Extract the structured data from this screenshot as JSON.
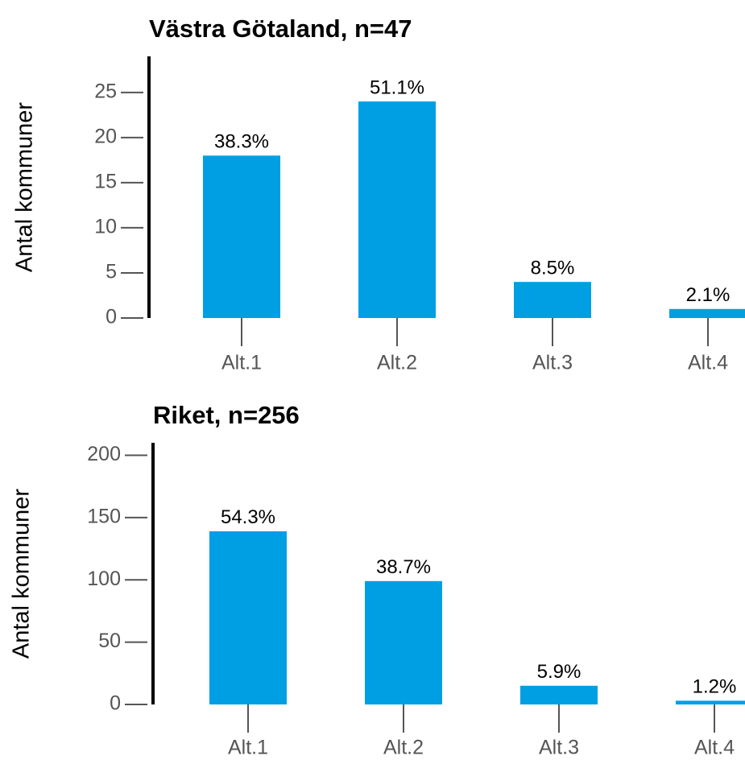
{
  "chart_data": [
    {
      "type": "bar",
      "title": "Västra Götaland, n=47",
      "y_label": "Antal kommuner",
      "categories": [
        "Alt.1",
        "Alt.2",
        "Alt.3",
        "Alt.4"
      ],
      "values": [
        18,
        24,
        4,
        1
      ],
      "value_labels": [
        "38.3%",
        "51.1%",
        "8.5%",
        "2.1%"
      ],
      "color": "#009fe3",
      "ylim": [
        0,
        29
      ],
      "yticks": [
        0,
        5,
        10,
        15,
        20,
        25
      ]
    },
    {
      "type": "bar",
      "title": "Riket, n=256",
      "y_label": "Antal kommuner",
      "categories": [
        "Alt.1",
        "Alt.2",
        "Alt.3",
        "Alt.4"
      ],
      "values": [
        139,
        99,
        15,
        3
      ],
      "value_labels": [
        "54.3%",
        "38.7%",
        "5.9%",
        "1.2%"
      ],
      "color": "#009fe3",
      "ylim": [
        0,
        210
      ],
      "yticks": [
        0,
        50,
        100,
        150,
        200
      ]
    }
  ]
}
